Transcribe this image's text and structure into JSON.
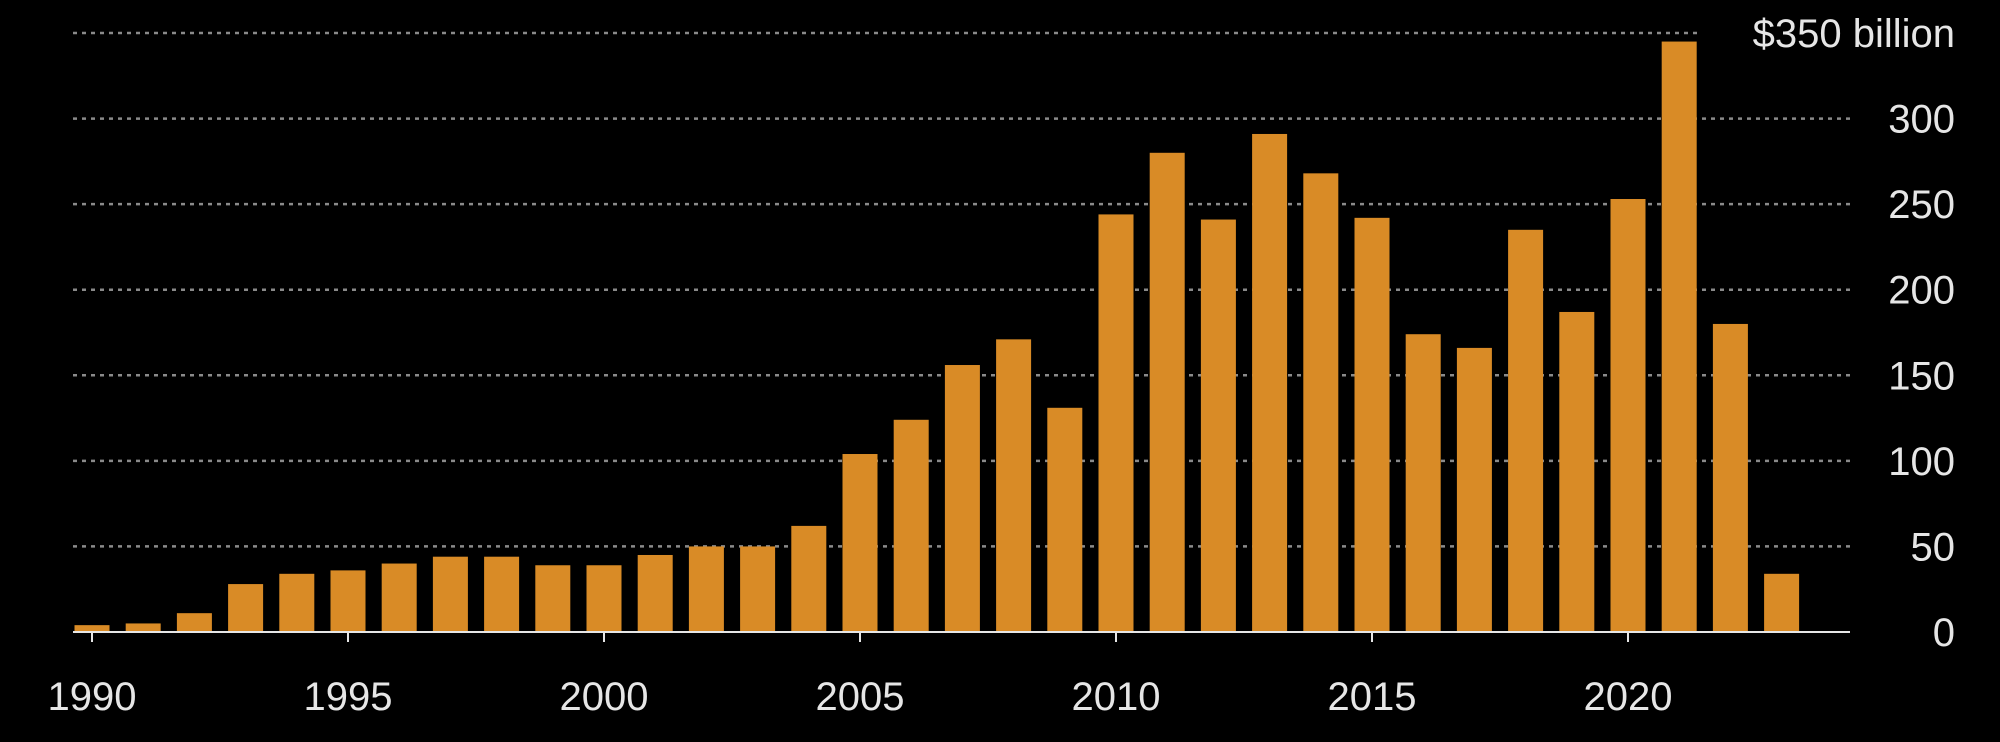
{
  "chart_data": {
    "type": "bar",
    "title": "",
    "xlabel": "",
    "ylabel": "",
    "y_unit_label": "$350 billion",
    "ylim": [
      0,
      350
    ],
    "y_ticks": [
      0,
      50,
      100,
      150,
      200,
      250,
      300,
      350
    ],
    "y_tick_labels": [
      "0",
      "50",
      "100",
      "150",
      "200",
      "250",
      "300",
      "$350 billion"
    ],
    "x_ticks": [
      1990,
      1995,
      2000,
      2005,
      2010,
      2015,
      2020
    ],
    "x_tick_labels": [
      "1990",
      "1995",
      "2000",
      "2005",
      "2010",
      "2015",
      "2020"
    ],
    "grid": true,
    "bar_color": "#d98b26",
    "categories": [
      1990,
      1991,
      1992,
      1993,
      1994,
      1995,
      1996,
      1997,
      1998,
      1999,
      2000,
      2001,
      2002,
      2003,
      2004,
      2005,
      2006,
      2007,
      2008,
      2009,
      2010,
      2011,
      2012,
      2013,
      2014,
      2015,
      2016,
      2017,
      2018,
      2019,
      2020,
      2021,
      2022,
      2023
    ],
    "values": [
      4,
      5,
      11,
      28,
      34,
      36,
      40,
      44,
      44,
      39,
      39,
      45,
      50,
      50,
      62,
      104,
      124,
      156,
      171,
      131,
      244,
      280,
      241,
      291,
      268,
      242,
      174,
      166,
      235,
      187,
      253,
      345,
      180,
      34
    ]
  }
}
